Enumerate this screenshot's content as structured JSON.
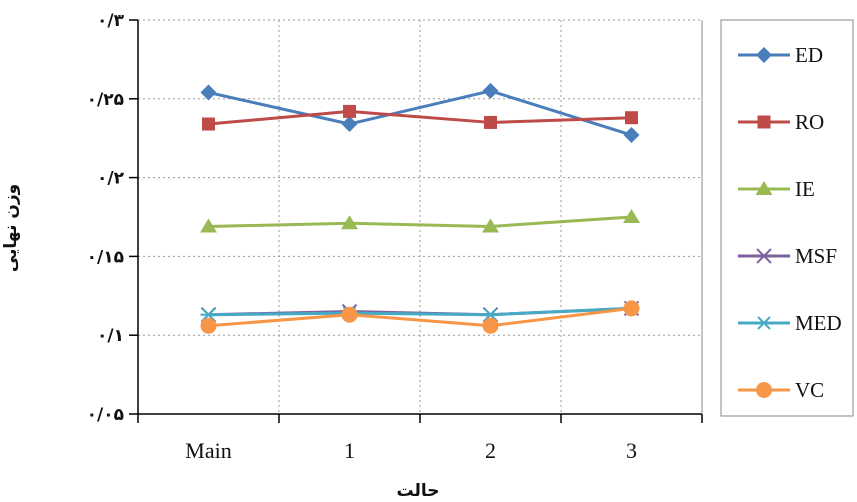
{
  "chart_data": {
    "type": "line",
    "xlabel": "حالت",
    "ylabel": "وزن نهایی",
    "categories": [
      "Main",
      "1",
      "2",
      "3"
    ],
    "ylim": [
      0.05,
      0.3
    ],
    "yticks": [
      0.05,
      0.1,
      0.15,
      0.2,
      0.25,
      0.3
    ],
    "ytick_labels": [
      "۰/۰۵",
      "۰/۱",
      "۰/۱۵",
      "۰/۲",
      "۰/۲۵",
      "۰/۳"
    ],
    "grid": true,
    "legend_position": "right",
    "series": [
      {
        "name": "ED",
        "values": [
          0.254,
          0.234,
          0.255,
          0.227
        ],
        "color": "#4a7ebb",
        "marker": "diamond"
      },
      {
        "name": "RO",
        "values": [
          0.234,
          0.242,
          0.235,
          0.238
        ],
        "color": "#be4b48",
        "marker": "square"
      },
      {
        "name": "IE",
        "values": [
          0.169,
          0.171,
          0.169,
          0.175
        ],
        "color": "#98b954",
        "marker": "triangle"
      },
      {
        "name": "MSF",
        "values": [
          0.113,
          0.115,
          0.113,
          0.117
        ],
        "color": "#7d60a0",
        "marker": "x"
      },
      {
        "name": "MED",
        "values": [
          0.113,
          0.114,
          0.113,
          0.117
        ],
        "color": "#46aac5",
        "marker": "star"
      },
      {
        "name": "VC",
        "values": [
          0.106,
          0.113,
          0.106,
          0.117
        ],
        "color": "#f79646",
        "marker": "circle"
      }
    ]
  }
}
